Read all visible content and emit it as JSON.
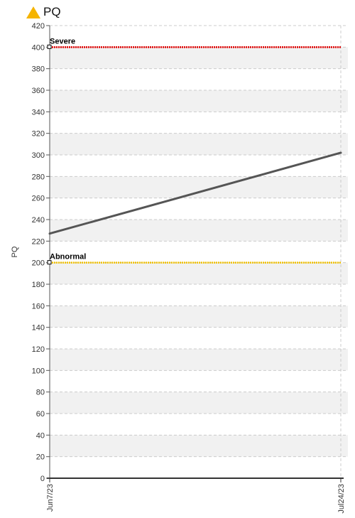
{
  "header": {
    "title": "PQ",
    "icon": "warning-triangle-icon",
    "icon_color": "#f5b400"
  },
  "chart_data": {
    "type": "line",
    "title": "PQ",
    "ylabel": "PQ",
    "xlabel": "",
    "ylim": [
      0,
      420
    ],
    "ytick_step": 20,
    "grid": true,
    "x_tick_labels": [
      "Jun7/23",
      "Jul24/23"
    ],
    "x": [
      "2023-06-07",
      "2023-07-24"
    ],
    "series": [
      {
        "values": [
          227,
          302
        ],
        "color": "#555555"
      }
    ],
    "thresholds": [
      {
        "label": "Severe",
        "value": 400,
        "color": "#e00000"
      },
      {
        "label": "Abnormal",
        "value": 200,
        "color": "#f0c000"
      }
    ]
  }
}
